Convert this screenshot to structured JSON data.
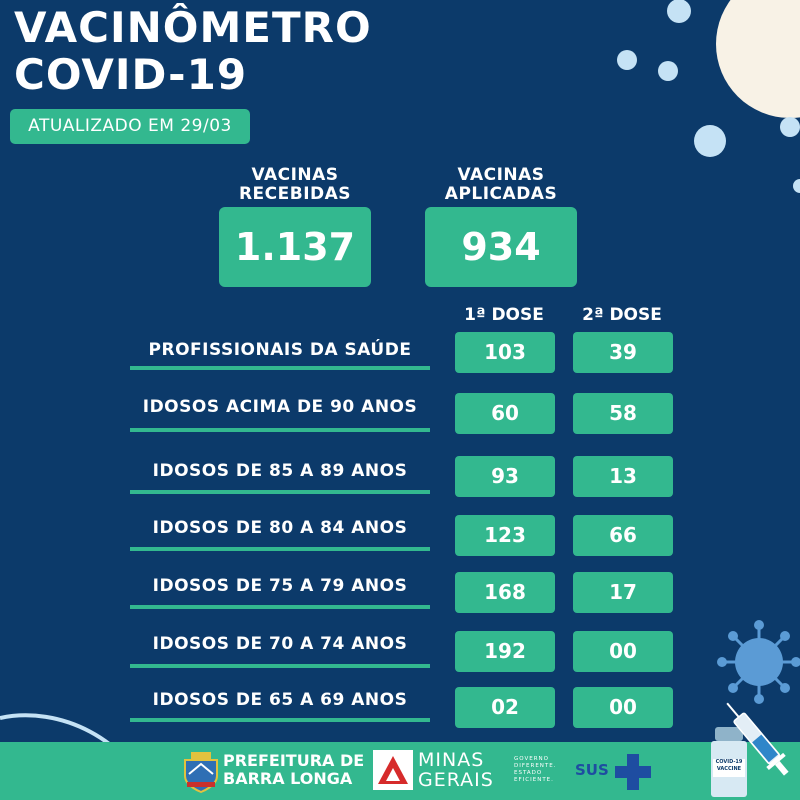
{
  "title_line1": "VACINÔMETRO",
  "title_line2": "COVID-19",
  "updated_text": "ATUALIZADO EM 29/03",
  "received": {
    "label_line1": "VACINAS",
    "label_line2": "RECEBIDAS",
    "value": "1.137"
  },
  "applied": {
    "label_line1": "VACINAS",
    "label_line2": "APLICADAS",
    "value": "934"
  },
  "dose_headers": {
    "first": "1ª DOSE",
    "second": "2ª DOSE"
  },
  "rows": [
    {
      "label": "PROFISSIONAIS DA SAÚDE",
      "dose1": "103",
      "dose2": "39"
    },
    {
      "label": "IDOSOS ACIMA DE 90 ANOS",
      "dose1": "60",
      "dose2": "58"
    },
    {
      "label": "IDOSOS DE 85 A 89 ANOS",
      "dose1": "93",
      "dose2": "13"
    },
    {
      "label": "IDOSOS DE 80 A 84 ANOS",
      "dose1": "123",
      "dose2": "66"
    },
    {
      "label": "IDOSOS DE 75 A 79 ANOS",
      "dose1": "168",
      "dose2": "17"
    },
    {
      "label": "IDOSOS DE 70 A 74 ANOS",
      "dose1": "192",
      "dose2": "00"
    },
    {
      "label": "IDOSOS DE 65 A 69 ANOS",
      "dose1": "02",
      "dose2": "00"
    }
  ],
  "footer": {
    "prefeitura_line1": "PREFEITURA DE",
    "prefeitura_line2": "BARRA LONGA",
    "minas_line1": "MINAS",
    "minas_line2": "GERAIS",
    "gov_line1": "GOVERNO",
    "gov_line2": "DIFERENTE.",
    "gov_line3": "ESTADO",
    "gov_line4": "EFICIENTE.",
    "sus": "SUS",
    "vaccine_label_small": "COVID-19",
    "vaccine_label": "VACCINE"
  },
  "colors": {
    "background": "#0c3a6a",
    "accent": "#33b88f",
    "bubble": "#c5e2f5",
    "moon": "#f8f2e6"
  },
  "icons": [
    "virus-icon",
    "syringe-icon",
    "vaccine-vial-icon",
    "coat-of-arms-icon",
    "minas-gerais-logo-icon",
    "sus-cross-icon"
  ]
}
